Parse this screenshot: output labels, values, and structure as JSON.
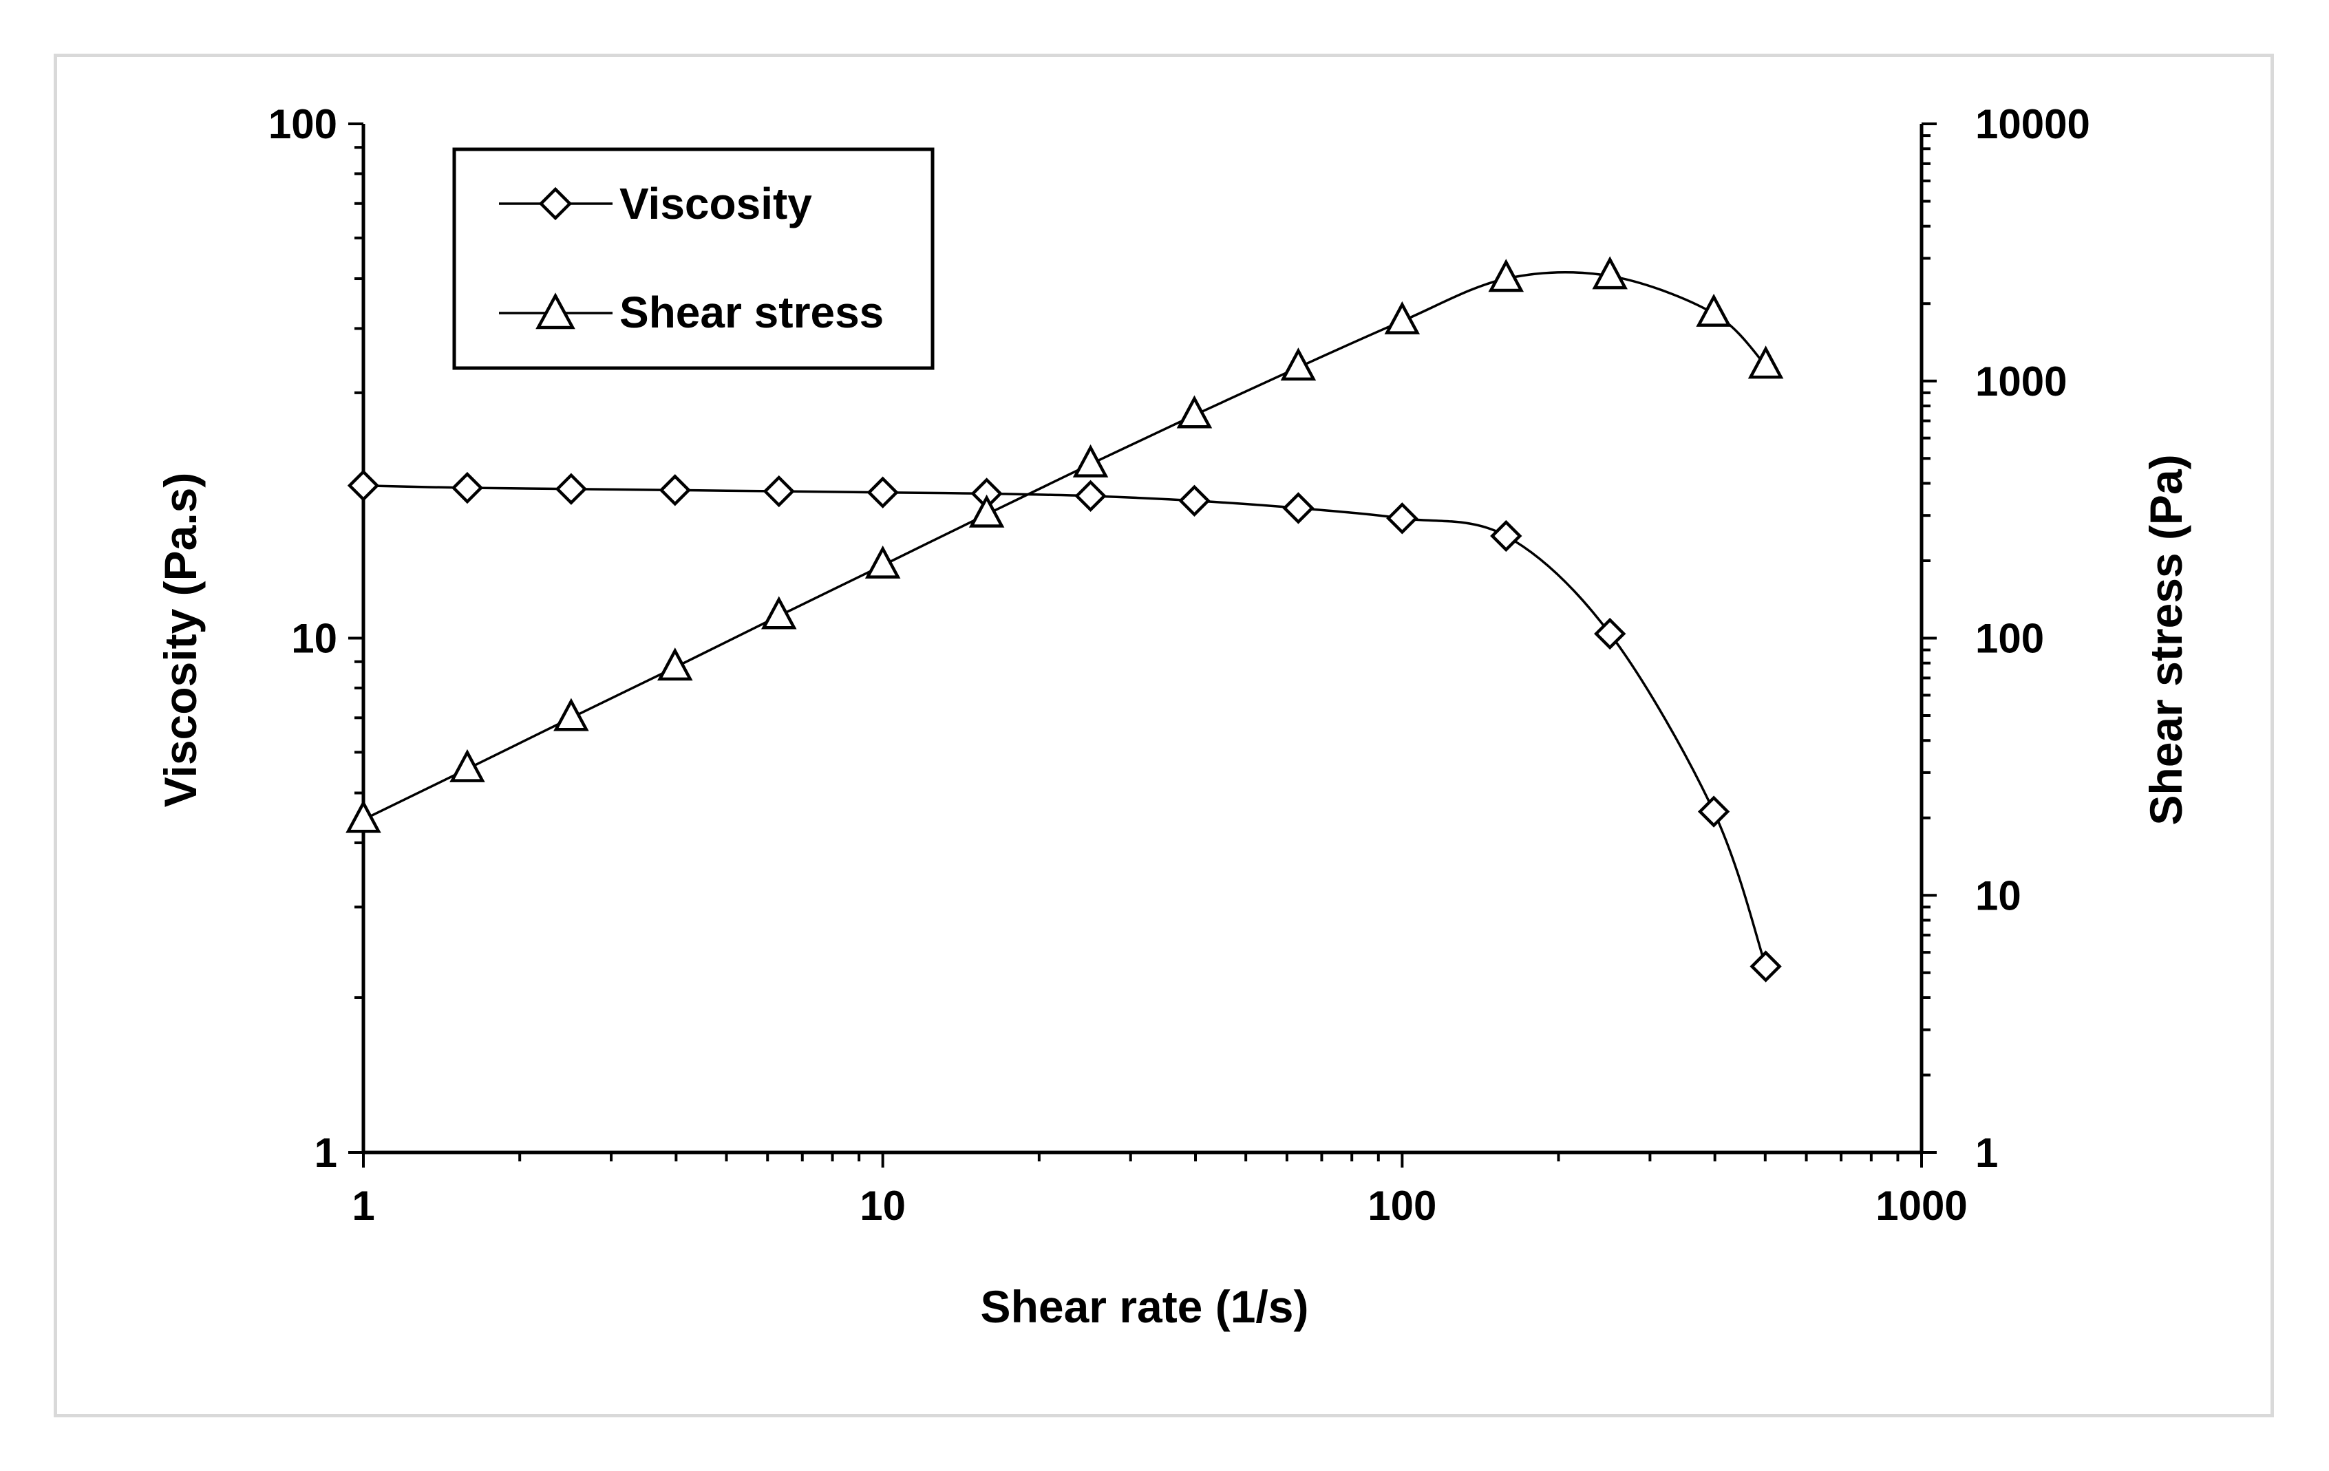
{
  "chart_data": {
    "type": "line",
    "title": "",
    "xlabel": "Shear rate (1/s)",
    "ylabel": "Viscosity (Pa.s)",
    "y2label": "Shear stress (Pa)",
    "xscale": "log",
    "yscale": "log",
    "y2scale": "log",
    "xlim": [
      1,
      1000
    ],
    "ylim": [
      1,
      100
    ],
    "y2lim": [
      1,
      10000
    ],
    "xticks": [
      "1",
      "10",
      "100",
      "1000"
    ],
    "yticks": [
      "1",
      "10",
      "100"
    ],
    "y2ticks": [
      "1",
      "10",
      "100",
      "1000",
      "10000"
    ],
    "grid": false,
    "legend_position": "top-left",
    "series": [
      {
        "name": "Viscosity",
        "marker": "diamond",
        "axis": "left",
        "x": [
          1,
          1.585,
          2.512,
          3.981,
          6.31,
          10,
          15.85,
          25.12,
          39.81,
          63.1,
          100,
          158.5,
          251.2,
          398.1,
          501.2
        ],
        "values": [
          19.8,
          19.6,
          19.5,
          19.4,
          19.3,
          19.2,
          19.1,
          18.9,
          18.5,
          17.9,
          17.1,
          15.8,
          10.2,
          4.6,
          2.3
        ]
      },
      {
        "name": "Shear stress",
        "marker": "triangle",
        "axis": "right",
        "x": [
          1,
          1.585,
          2.512,
          3.981,
          6.31,
          10,
          15.85,
          25.12,
          39.81,
          63.1,
          100,
          158.5,
          251.2,
          398.1,
          501.2
        ],
        "values": [
          19.7,
          31,
          49,
          77,
          122,
          192,
          303,
          475,
          737,
          1130,
          1710,
          2500,
          2560,
          1830,
          1150
        ]
      }
    ]
  }
}
